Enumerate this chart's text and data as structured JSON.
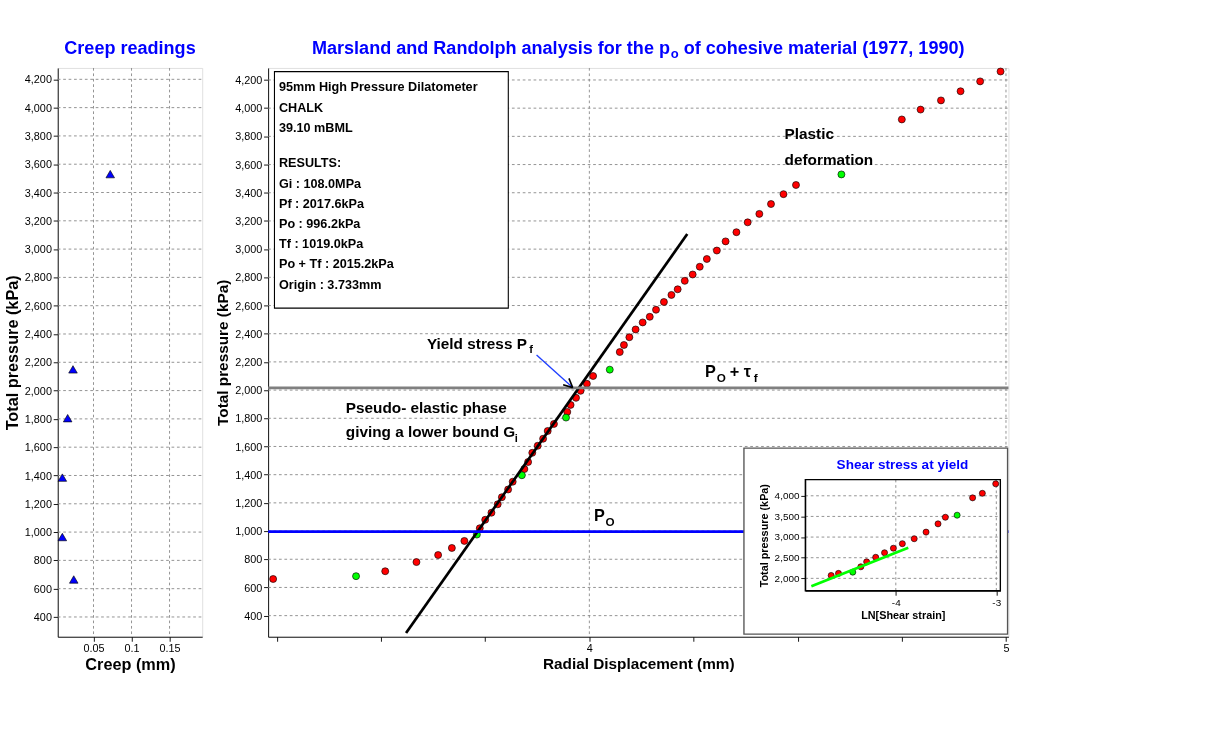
{
  "chart_data": [
    {
      "type": "scatter",
      "title": "Creep readings",
      "xlabel": "Creep (mm)",
      "ylabel": "Total pressure (kPa)",
      "series": [
        {
          "color": "#0000ff",
          "x": [
            0.072,
            0.023,
            0.016,
            0.009,
            0.009,
            0.024
          ],
          "values": [
            3530,
            2150,
            1805,
            1385,
            965,
            665
          ]
        }
      ],
      "marker": "triangle",
      "grid": true,
      "xlim": [
        0.003,
        0.193
      ],
      "ylim": [
        260,
        4280
      ],
      "xticks": [
        0.05,
        0.1,
        0.15
      ],
      "yticks": [
        400,
        600,
        800,
        {
          "value": 1000,
          "label": "1,000"
        },
        {
          "value": 1200,
          "label": "1,200"
        },
        {
          "value": 1400,
          "label": "1,400"
        },
        {
          "value": 1600,
          "label": "1,600"
        },
        {
          "value": 1800,
          "label": "1,800"
        },
        {
          "value": 2000,
          "label": "2,000"
        },
        {
          "value": 2200,
          "label": "2,200"
        },
        {
          "value": 2400,
          "label": "2,400"
        },
        {
          "value": 2600,
          "label": "2,600"
        },
        {
          "value": 2800,
          "label": "2,800"
        },
        {
          "value": 3000,
          "label": "3,000"
        },
        {
          "value": 3200,
          "label": "3,200"
        },
        {
          "value": 3400,
          "label": "3,400"
        },
        {
          "value": 3600,
          "label": "3,600"
        },
        {
          "value": 3800,
          "label": "3,800"
        },
        {
          "value": 4000,
          "label": "4,000"
        },
        {
          "value": 4200,
          "label": "4,200"
        }
      ]
    },
    {
      "type": "scatter",
      "title": "Marsland and Randolph analysis for the p$_{o}$ of cohesive material (1977, 1990)",
      "xlabel": "Radial Displacement (mm)",
      "ylabel": "Total pressure (kPa)",
      "series": [
        {
          "color": "#ff0000",
          "x": [
            3.241,
            3.51,
            3.585,
            3.637,
            3.67,
            3.7,
            3.737,
            3.75,
            3.765,
            3.78,
            3.79,
            3.805,
            3.816,
            3.844,
            3.853,
            3.863,
            3.876,
            3.889,
            3.9,
            3.915,
            3.947,
            3.955,
            3.968,
            3.979,
            3.994,
            4.009,
            4.073,
            4.083,
            4.096,
            4.111,
            4.128,
            4.145,
            4.16,
            4.179,
            4.197,
            4.212,
            4.229,
            4.248,
            4.265,
            4.282,
            4.306,
            4.327,
            4.353,
            4.38,
            4.408,
            4.436,
            4.466,
            4.496,
            4.75,
            4.795,
            4.844,
            4.891,
            4.938,
            4.987
          ],
          "values": [
            660,
            715,
            780,
            830,
            880,
            930,
            1020,
            1080,
            1130,
            1190,
            1240,
            1295,
            1350,
            1440,
            1490,
            1555,
            1605,
            1655,
            1710,
            1760,
            1845,
            1895,
            1945,
            1995,
            2045,
            2100,
            2270,
            2320,
            2375,
            2430,
            2480,
            2520,
            2570,
            2625,
            2675,
            2715,
            2775,
            2820,
            2875,
            2930,
            2990,
            3055,
            3120,
            3190,
            3250,
            3320,
            3390,
            3455,
            3920,
            3990,
            4055,
            4120,
            4190,
            4260
          ]
        },
        {
          "color": "#00ff00",
          "x": [
            3.44,
            3.73,
            3.838,
            3.944,
            4.049,
            4.605
          ],
          "values": [
            680,
            975,
            1396,
            1805,
            2145,
            3530
          ]
        },
        {
          "type": "line",
          "color": "#000000",
          "marker": "none",
          "x": [
            3.56,
            4.235
          ],
          "values": [
            277,
            3107
          ]
        }
      ],
      "marker": "circle",
      "grid": true,
      "xlim": [
        3.229,
        5.006
      ],
      "ylim": [
        250,
        4285
      ],
      "xticks": [
        {
          "value": 3.25,
          "label": null
        },
        {
          "value": 3.5,
          "label": null
        },
        {
          "value": 3.75,
          "label": null
        },
        4,
        {
          "value": 4.25,
          "label": null
        },
        {
          "value": 4.5,
          "label": null
        },
        {
          "value": 4.75,
          "label": null
        },
        5
      ],
      "yticks": [
        400,
        600,
        800,
        {
          "value": 1000,
          "label": "1,000"
        },
        {
          "value": 1200,
          "label": "1,200"
        },
        {
          "value": 1400,
          "label": "1,400"
        },
        {
          "value": 1600,
          "label": "1,600"
        },
        {
          "value": 1800,
          "label": "1,800"
        },
        {
          "value": 2000,
          "label": "2,000"
        },
        {
          "value": 2200,
          "label": "2,200"
        },
        {
          "value": 2400,
          "label": "2,400"
        },
        {
          "value": 2600,
          "label": "2,600"
        },
        {
          "value": 2800,
          "label": "2,800"
        },
        {
          "value": 3000,
          "label": "3,000"
        },
        {
          "value": 3200,
          "label": "3,200"
        },
        {
          "value": 3400,
          "label": "3,400"
        },
        {
          "value": 3600,
          "label": "3,600"
        },
        {
          "value": 3800,
          "label": "3,800"
        },
        {
          "value": 4000,
          "label": "4,000"
        },
        {
          "value": 4200,
          "label": "4,200"
        }
      ],
      "ref_lines": [
        {
          "axis": "y",
          "value": 996.2,
          "label": "P$_{O}$",
          "color": "#0000ff"
        },
        {
          "axis": "y",
          "value": 2015.2,
          "label": "P$_{O}$ + τ$_{f}$",
          "color": "#808080"
        }
      ],
      "annotations": [
        "95mm High Pressure Dilatometer\nCHALK\n39.10 mBML",
        "RESULTS:\nGi : 108.0MPa\nPf : 2017.6kPa\nPo : 996.2kPa\nTf : 1019.0kPa\nPo + Tf : 2015.2kPa\nOrigin : 3.733mm",
        "Pseudo- elastic phase\ngiving a lower bound G$_{i}$",
        "Plastic\ndeformation",
        {
          "text": "Yield stress P$_{f}$",
          "x": 3.96,
          "y": 2017.6
        }
      ]
    },
    {
      "type": "scatter",
      "title": "Shear stress at yield",
      "xlabel": "LN[Shear strain]",
      "ylabel": "Total pressure (kPa)",
      "series": [
        {
          "color": "#ff0000",
          "x": [
            -4.643,
            -4.57,
            -4.348,
            -4.29,
            -4.2,
            -4.112,
            -4.024,
            -3.935,
            -3.817,
            -3.699,
            -3.58,
            -3.507,
            -3.236,
            -3.139,
            -3.006
          ],
          "values": [
            2070,
            2120,
            2280,
            2400,
            2510,
            2620,
            2730,
            2840,
            2960,
            3120,
            3320,
            3480,
            3950,
            4060,
            4290
          ]
        },
        {
          "color": "#00ff00",
          "x": [
            -4.428,
            -3.39
          ],
          "values": [
            2150,
            3530
          ]
        },
        {
          "type": "line",
          "color": "#00ff00",
          "marker": "none",
          "x": [
            -4.84,
            -3.876
          ],
          "values": [
            1810,
            2740
          ]
        }
      ],
      "marker": "circle",
      "grid": true,
      "xlim": [
        -4.9,
        -2.96
      ],
      "ylim": [
        1700,
        4390
      ],
      "xticks": [
        -4,
        -3
      ],
      "yticks": [
        {
          "value": 2000,
          "label": "2,000"
        },
        {
          "value": 2500,
          "label": "2,500"
        },
        {
          "value": 3000,
          "label": "3,000"
        },
        {
          "value": 3500,
          "label": "3,500"
        },
        {
          "value": 4000,
          "label": "4,000"
        }
      ]
    }
  ]
}
